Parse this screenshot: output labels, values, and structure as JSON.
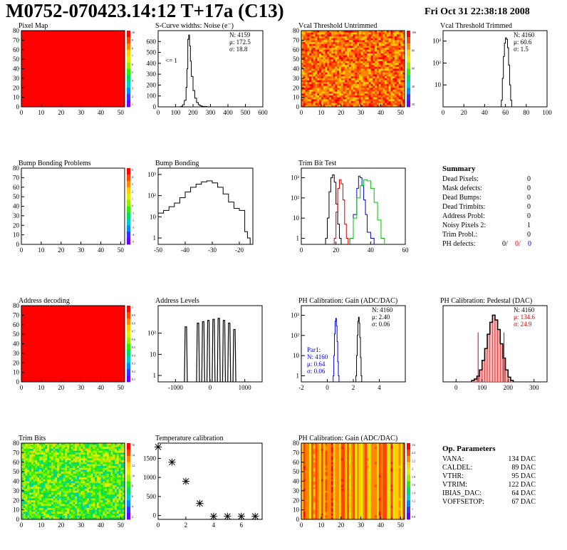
{
  "header": {
    "title": "M0752-070423.14:12 T+17a (C13)",
    "date": "Fri Oct 31 22:38:18 2008"
  },
  "colors": {
    "black": "#000000",
    "red": "#d00000",
    "blue": "#0000d0",
    "green": "#00c000",
    "map_red": "#ff0000"
  },
  "chart_data": [
    {
      "id": "pixel-map",
      "type": "heatmap",
      "title": "Pixel Map",
      "xlim": [
        0,
        52
      ],
      "ylim": [
        0,
        80
      ],
      "xticks": [
        0,
        10,
        20,
        30,
        40,
        50
      ],
      "yticks": [
        0,
        10,
        20,
        30,
        40,
        50,
        60,
        70,
        80
      ],
      "fill": "uniform-max",
      "colorbar_ticks": [
        "10",
        "9",
        "8",
        "7",
        "6",
        "5",
        "4",
        "3",
        "2",
        "1"
      ]
    },
    {
      "id": "scurve-noise",
      "type": "line",
      "title": "S-Curve widths: Noise (e⁻)",
      "xlim": [
        0,
        600
      ],
      "ylim": [
        0,
        700
      ],
      "xticks": [
        0,
        100,
        200,
        300,
        400,
        500,
        600
      ],
      "yticks": [
        0,
        100,
        200,
        300,
        400,
        500,
        600
      ],
      "x": [
        120,
        130,
        140,
        150,
        160,
        165,
        170,
        175,
        180,
        185,
        190,
        200,
        210,
        220,
        230,
        240,
        250,
        260,
        280,
        300
      ],
      "values": [
        0,
        5,
        20,
        60,
        180,
        350,
        620,
        660,
        560,
        420,
        280,
        150,
        80,
        40,
        20,
        10,
        5,
        3,
        1,
        0
      ],
      "stats": [
        "N: 4159",
        "μ: 172.5",
        "σ: 18.8"
      ],
      "annotation": "<= 1"
    },
    {
      "id": "vcal-untrimmed",
      "type": "heatmap",
      "title": "Vcal Threshold Untrimmed",
      "xlim": [
        0,
        52
      ],
      "ylim": [
        0,
        80
      ],
      "xticks": [
        0,
        10,
        20,
        30,
        40,
        50
      ],
      "yticks": [
        0,
        10,
        20,
        30,
        40,
        50,
        60,
        70,
        80
      ],
      "fill": "orange-noise",
      "colorbar_ticks": [
        "100",
        "80",
        "60",
        "40",
        "20"
      ]
    },
    {
      "id": "vcal-trimmed",
      "type": "line",
      "title": "Vcal Threshold Trimmed",
      "xlim": [
        0,
        100
      ],
      "ylog": true,
      "ylim": [
        1,
        3000
      ],
      "xticks": [
        0,
        20,
        40,
        60,
        80,
        100
      ],
      "yticks": [
        "10",
        "10²",
        "10³"
      ],
      "x": [
        56,
        57,
        58,
        59,
        60,
        61,
        62,
        63,
        64,
        65
      ],
      "values": [
        2,
        20,
        200,
        800,
        1400,
        1200,
        500,
        80,
        10,
        2
      ],
      "stats": [
        "N: 4160",
        "μ: 60.6",
        "σ:   1.5"
      ]
    },
    {
      "id": "bump-bonding-problems",
      "type": "heatmap",
      "title": "Bump Bonding Problems",
      "xlim": [
        0,
        52
      ],
      "ylim": [
        0,
        80
      ],
      "xticks": [
        0,
        10,
        20,
        30,
        40,
        50
      ],
      "yticks": [
        0,
        10,
        20,
        30,
        40,
        50,
        60,
        70,
        80
      ],
      "fill": "empty",
      "colorbar_ticks": [
        "5",
        "4",
        "3",
        "2",
        "1",
        "0",
        "-1",
        "-2",
        "-3",
        "-4",
        "-5"
      ]
    },
    {
      "id": "bump-bonding",
      "type": "line",
      "title": "Bump Bonding",
      "xlim": [
        -50,
        -15
      ],
      "ylog": true,
      "ylim": [
        0.5,
        2000
      ],
      "xticks": [
        -50,
        -40,
        -30,
        -20
      ],
      "yticks": [
        "1",
        "10",
        "10²",
        "10³"
      ],
      "x": [
        -50,
        -48,
        -46,
        -44,
        -42,
        -40,
        -38,
        -36,
        -34,
        -32,
        -30,
        -28,
        -26,
        -24,
        -22,
        -20,
        -18,
        -17
      ],
      "values": [
        15,
        20,
        30,
        45,
        80,
        150,
        250,
        350,
        450,
        500,
        400,
        250,
        120,
        50,
        25,
        20,
        2,
        1
      ]
    },
    {
      "id": "trim-bit-test",
      "type": "line",
      "title": "Trim Bit Test",
      "xlim": [
        0,
        60
      ],
      "ylog": true,
      "ylim": [
        0.5,
        3000
      ],
      "xticks": [
        0,
        20,
        40,
        60
      ],
      "yticks": [
        "1",
        "10",
        "10²",
        "10³"
      ],
      "series": [
        {
          "color": "#000000",
          "x": [
            14,
            15,
            16,
            17,
            18,
            19,
            20,
            21,
            22
          ],
          "values": [
            1,
            10,
            200,
            1000,
            1400,
            600,
            50,
            5,
            1
          ]
        },
        {
          "color": "#d00000",
          "x": [
            19,
            20,
            21,
            22,
            23,
            24,
            25,
            26
          ],
          "values": [
            1,
            20,
            300,
            800,
            500,
            80,
            5,
            1
          ]
        },
        {
          "color": "#0000d0",
          "x": [
            28,
            30,
            32,
            33,
            34,
            35,
            36,
            37,
            38,
            40
          ],
          "values": [
            1,
            15,
            300,
            1200,
            1000,
            400,
            80,
            15,
            2,
            1
          ]
        },
        {
          "color": "#00c000",
          "x": [
            28,
            30,
            32,
            34,
            36,
            38,
            40,
            42,
            44,
            46
          ],
          "values": [
            1,
            10,
            100,
            400,
            800,
            700,
            300,
            60,
            8,
            1
          ]
        }
      ]
    },
    {
      "id": "address-decoding",
      "type": "heatmap",
      "title": "Address decoding",
      "xlim": [
        0,
        52
      ],
      "ylim": [
        0,
        80
      ],
      "xticks": [
        0,
        10,
        20,
        30,
        40,
        50
      ],
      "yticks": [
        0,
        10,
        20,
        30,
        40,
        50,
        60,
        70,
        80
      ],
      "fill": "uniform-max",
      "colorbar_ticks": [
        "1",
        "0.9",
        "0.8",
        "0.7",
        "0.6",
        "0.5",
        "0.4",
        "0.3",
        "0.2",
        "0.1"
      ]
    },
    {
      "id": "address-levels",
      "type": "bar",
      "title": "Address Levels",
      "xlim": [
        -1500,
        1500
      ],
      "ylog": true,
      "ylim": [
        0.5,
        2000
      ],
      "xticks": [
        -1000,
        0,
        1000
      ],
      "yticks": [
        "1",
        "10",
        "10²"
      ],
      "x": [
        -700,
        -350,
        -200,
        -50,
        100,
        250,
        400,
        550,
        700
      ],
      "values": [
        200,
        300,
        350,
        400,
        450,
        500,
        400,
        300,
        150
      ]
    },
    {
      "id": "ph-gain",
      "type": "line",
      "title": "PH Calibration: Gain (ADC/DAC)",
      "xlim": [
        -2,
        6
      ],
      "ylog": true,
      "ylim": [
        0.5,
        3000
      ],
      "xticks": [
        -2,
        0,
        2,
        4
      ],
      "yticks": [
        "1",
        "10",
        "10²",
        "10³"
      ],
      "stats": [
        "N: 4160",
        "μ: 2.40",
        "σ: 0.06"
      ],
      "stats2": [
        "Par1:",
        "N: 4160",
        "μ: 0.64",
        "σ: 0.06"
      ],
      "series": [
        {
          "color": "#000000",
          "x": [
            2.2,
            2.25,
            2.3,
            2.35,
            2.4,
            2.45,
            2.5,
            2.55,
            2.6
          ],
          "values": [
            1,
            10,
            100,
            500,
            800,
            400,
            80,
            8,
            1
          ]
        },
        {
          "color": "#0000d0",
          "x": [
            0.45,
            0.5,
            0.55,
            0.6,
            0.65,
            0.7,
            0.75,
            0.8,
            0.85
          ],
          "values": [
            1,
            10,
            120,
            500,
            700,
            300,
            50,
            5,
            1
          ]
        }
      ]
    },
    {
      "id": "ph-pedestal",
      "type": "bar",
      "title": "PH Calibration: Pedestal (DAC)",
      "xlim": [
        -50,
        350
      ],
      "ylim": [
        0,
        160
      ],
      "xticks": [
        0,
        100,
        200,
        300
      ],
      "stats": [
        "N: 4160",
        "μ: 134.6",
        "σ: 24.9"
      ],
      "x": [
        60,
        70,
        80,
        90,
        100,
        110,
        120,
        130,
        140,
        150,
        160,
        170,
        180,
        190,
        200,
        210
      ],
      "values": [
        3,
        6,
        12,
        25,
        45,
        70,
        100,
        125,
        140,
        130,
        110,
        80,
        50,
        25,
        10,
        3
      ]
    },
    {
      "id": "trim-bits",
      "type": "heatmap",
      "title": "Trim Bits",
      "xlim": [
        0,
        52
      ],
      "ylim": [
        0,
        80
      ],
      "xticks": [
        0,
        10,
        20,
        30,
        40,
        50
      ],
      "yticks": [
        0,
        10,
        20,
        30,
        40,
        50,
        60,
        70,
        80
      ],
      "fill": "green-noise",
      "colorbar_ticks": [
        "16",
        "14",
        "12",
        "10",
        "8",
        "6",
        "4",
        "2"
      ]
    },
    {
      "id": "temperature-calibration",
      "type": "scatter",
      "title": "Temperature calibration",
      "xlim": [
        0,
        7.5
      ],
      "ylim": [
        -100,
        1900
      ],
      "xticks": [
        0,
        2,
        4,
        6
      ],
      "yticks": [
        0,
        500,
        1000,
        1500
      ],
      "x": [
        0,
        1,
        2,
        3,
        4,
        5,
        6,
        7
      ],
      "values": [
        1800,
        1400,
        900,
        320,
        -20,
        -20,
        -20,
        -20
      ]
    },
    {
      "id": "ph-gain-map",
      "type": "heatmap",
      "title": "PH Calibration: Gain (ADC/DAC)",
      "xlim": [
        0,
        52
      ],
      "ylim": [
        0,
        80
      ],
      "xticks": [
        0,
        10,
        20,
        30,
        40,
        50
      ],
      "yticks": [
        0,
        10,
        20,
        30,
        40,
        50,
        60,
        70,
        80
      ],
      "fill": "column-stripes",
      "colorbar_ticks": [
        "2.6",
        "2.4",
        "2.2",
        "2",
        "1.8",
        "1.6",
        "1.4",
        "1.2",
        "1",
        "0.8"
      ]
    }
  ],
  "summary": {
    "title": "Summary",
    "rows": [
      {
        "label": "Dead Pixels:",
        "value": "0"
      },
      {
        "label": "Mask defects:",
        "value": "0"
      },
      {
        "label": "Dead Bumps:",
        "value": "0"
      },
      {
        "label": "Dead Trimbits:",
        "value": "0"
      },
      {
        "label": "Address Probl:",
        "value": "0"
      },
      {
        "label": "Noisy Pixels 2:",
        "value": "1"
      },
      {
        "label": "Trim Probl.:",
        "value": "0"
      }
    ],
    "ph_label": "PH defects:",
    "ph_values": [
      {
        "text": "0/",
        "color": "#000000"
      },
      {
        "text": "0/",
        "color": "#d00000"
      },
      {
        "text": "0",
        "color": "#0000d0"
      }
    ]
  },
  "op_params": {
    "title": "Op. Parameters",
    "rows": [
      {
        "label": "VANA:",
        "value": "134 DAC"
      },
      {
        "label": "CALDEL:",
        "value": "89 DAC"
      },
      {
        "label": "VTHR:",
        "value": "95 DAC"
      },
      {
        "label": "VTRIM:",
        "value": "122 DAC"
      },
      {
        "label": "IBIAS_DAC:",
        "value": "64 DAC"
      },
      {
        "label": "VOFFSETOP:",
        "value": "67 DAC"
      }
    ]
  }
}
